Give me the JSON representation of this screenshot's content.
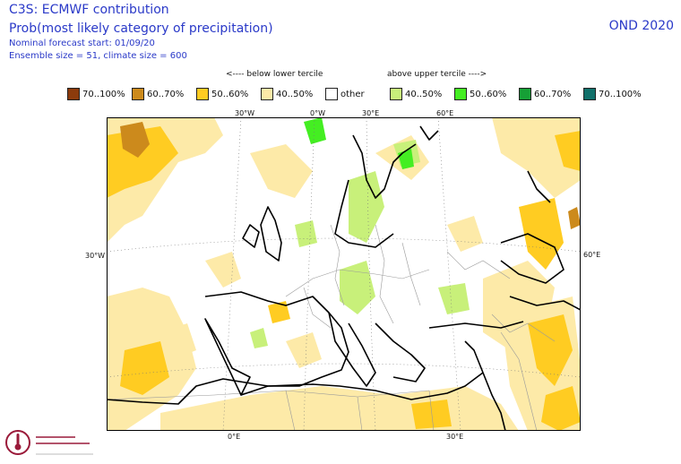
{
  "header": {
    "title_line1": "C3S: ECMWF contribution",
    "title_line2": "Prob(most likely category of precipitation)",
    "forecast_start": "Nominal forecast start: 01/09/20",
    "ensemble": "Ensemble size = 51, climate size = 600",
    "season": "OND 2020"
  },
  "tercile_labels": {
    "below": "<---- below lower tercile",
    "above": "above upper tercile ---->"
  },
  "legend": [
    {
      "label": "70..100%",
      "color": "#8c3b0c"
    },
    {
      "label": "60..70%",
      "color": "#cc8a1c"
    },
    {
      "label": "50..60%",
      "color": "#ffcc22"
    },
    {
      "label": "40..50%",
      "color": "#fdeaa8"
    },
    {
      "label": "other",
      "color": "#ffffff"
    },
    {
      "label": "40..50%",
      "color": "#c8f07a"
    },
    {
      "label": "50..60%",
      "color": "#44ee22"
    },
    {
      "label": "60..70%",
      "color": "#16a036"
    },
    {
      "label": "70..100%",
      "color": "#11706a"
    }
  ],
  "coords": {
    "top": [
      "30°W",
      "0°W",
      "30°E",
      "60°E"
    ],
    "left": "30°W",
    "right": "60°E",
    "bottom": [
      "0°E",
      "30°E"
    ]
  },
  "logo": {
    "name": "Climate Change Service"
  }
}
